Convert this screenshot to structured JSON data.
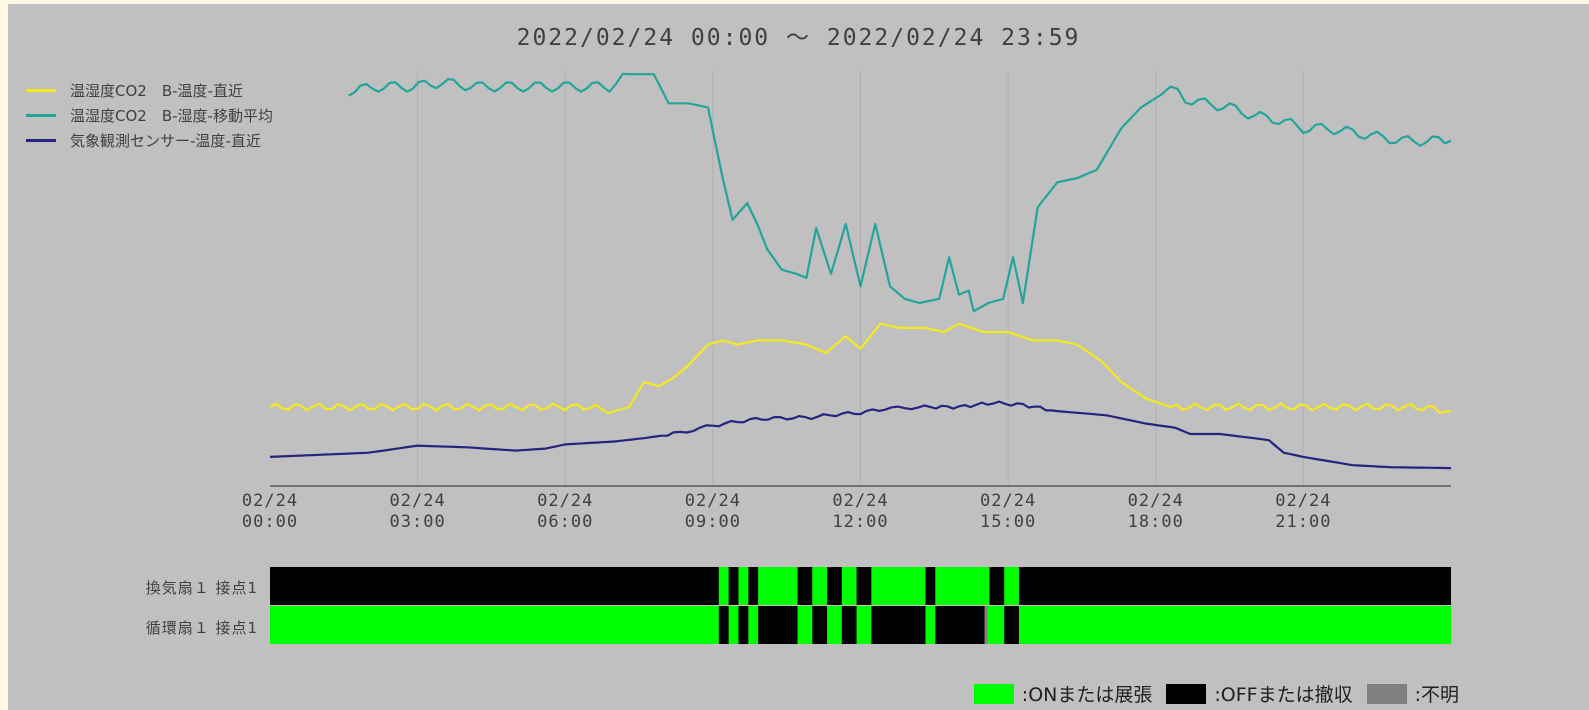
{
  "colors": {
    "background": "#c0c0c0",
    "axis": "#5a5a5a",
    "grid": "#b0b0b0",
    "on": "#00ff00",
    "off": "#000000",
    "unknown": "#808080"
  },
  "chart_data": {
    "type": "line",
    "title": "2022/02/24 00:00 ～ 2022/02/24 23:59",
    "x_range_hours": [
      0,
      24
    ],
    "y_range_relative": [
      0,
      1
    ],
    "x_ticks": [
      {
        "hour": 0,
        "date": "02/24",
        "time": "00:00"
      },
      {
        "hour": 3,
        "date": "02/24",
        "time": "03:00"
      },
      {
        "hour": 6,
        "date": "02/24",
        "time": "06:00"
      },
      {
        "hour": 9,
        "date": "02/24",
        "time": "09:00"
      },
      {
        "hour": 12,
        "date": "02/24",
        "time": "12:00"
      },
      {
        "hour": 15,
        "date": "02/24",
        "time": "15:00"
      },
      {
        "hour": 18,
        "date": "02/24",
        "time": "18:00"
      },
      {
        "hour": 21,
        "date": "02/24",
        "time": "21:00"
      }
    ],
    "grid": true,
    "legend_position": "top-left",
    "series": [
      {
        "name": "温湿度CO2　B-温度-直近",
        "color": "#f5ea1e",
        "points": [
          [
            0,
            0.19
          ],
          [
            0.5,
            0.19
          ],
          [
            1,
            0.19
          ],
          [
            1.5,
            0.19
          ],
          [
            2,
            0.19
          ],
          [
            2.5,
            0.19
          ],
          [
            3,
            0.19
          ],
          [
            3.5,
            0.19
          ],
          [
            4,
            0.19
          ],
          [
            4.5,
            0.19
          ],
          [
            5,
            0.19
          ],
          [
            5.5,
            0.19
          ],
          [
            6,
            0.19
          ],
          [
            6.5,
            0.19
          ],
          [
            7,
            0.18
          ],
          [
            7.3,
            0.19
          ],
          [
            7.6,
            0.25
          ],
          [
            7.9,
            0.24
          ],
          [
            8.2,
            0.26
          ],
          [
            8.5,
            0.29
          ],
          [
            8.9,
            0.34
          ],
          [
            9.2,
            0.35
          ],
          [
            9.5,
            0.34
          ],
          [
            9.9,
            0.35
          ],
          [
            10.4,
            0.35
          ],
          [
            10.9,
            0.34
          ],
          [
            11.3,
            0.32
          ],
          [
            11.7,
            0.36
          ],
          [
            12,
            0.33
          ],
          [
            12.4,
            0.39
          ],
          [
            12.8,
            0.38
          ],
          [
            13.3,
            0.38
          ],
          [
            13.7,
            0.37
          ],
          [
            14,
            0.39
          ],
          [
            14.5,
            0.37
          ],
          [
            15,
            0.37
          ],
          [
            15.5,
            0.35
          ],
          [
            16,
            0.35
          ],
          [
            16.4,
            0.34
          ],
          [
            16.9,
            0.3
          ],
          [
            17.3,
            0.25
          ],
          [
            17.8,
            0.21
          ],
          [
            18.3,
            0.19
          ],
          [
            18.8,
            0.19
          ],
          [
            19.3,
            0.19
          ],
          [
            19.8,
            0.19
          ],
          [
            20.3,
            0.19
          ],
          [
            20.8,
            0.19
          ],
          [
            21.3,
            0.19
          ],
          [
            21.8,
            0.19
          ],
          [
            22.3,
            0.19
          ],
          [
            22.8,
            0.19
          ],
          [
            23.3,
            0.19
          ],
          [
            24,
            0.18
          ]
        ]
      },
      {
        "name": "温湿度CO2　B-湿度-移動平均",
        "color": "#23a59a",
        "points": [
          [
            1.6,
            0.95
          ],
          [
            2.2,
            0.96
          ],
          [
            2.9,
            0.96
          ],
          [
            3.5,
            0.97
          ],
          [
            4.2,
            0.96
          ],
          [
            4.8,
            0.96
          ],
          [
            5.5,
            0.96
          ],
          [
            6.2,
            0.96
          ],
          [
            6.9,
            0.96
          ],
          [
            7.3,
            0.99
          ],
          [
            7.8,
            0.99
          ],
          [
            8.1,
            0.92
          ],
          [
            8.5,
            0.92
          ],
          [
            8.9,
            0.91
          ],
          [
            9.2,
            0.74
          ],
          [
            9.4,
            0.64
          ],
          [
            9.7,
            0.68
          ],
          [
            9.9,
            0.63
          ],
          [
            10.1,
            0.57
          ],
          [
            10.4,
            0.52
          ],
          [
            10.7,
            0.51
          ],
          [
            10.9,
            0.5
          ],
          [
            11.1,
            0.62
          ],
          [
            11.4,
            0.51
          ],
          [
            11.7,
            0.63
          ],
          [
            12.0,
            0.48
          ],
          [
            12.3,
            0.63
          ],
          [
            12.6,
            0.48
          ],
          [
            12.9,
            0.45
          ],
          [
            13.2,
            0.44
          ],
          [
            13.6,
            0.45
          ],
          [
            13.8,
            0.55
          ],
          [
            14.0,
            0.46
          ],
          [
            14.2,
            0.47
          ],
          [
            14.3,
            0.42
          ],
          [
            14.6,
            0.44
          ],
          [
            14.9,
            0.45
          ],
          [
            15.1,
            0.55
          ],
          [
            15.3,
            0.44
          ],
          [
            15.6,
            0.67
          ],
          [
            16.0,
            0.73
          ],
          [
            16.4,
            0.74
          ],
          [
            16.8,
            0.76
          ],
          [
            17.3,
            0.86
          ],
          [
            17.7,
            0.91
          ],
          [
            18.1,
            0.94
          ],
          [
            18.3,
            0.96
          ],
          [
            18.6,
            0.93
          ],
          [
            19.0,
            0.92
          ],
          [
            19.5,
            0.91
          ],
          [
            20.0,
            0.89
          ],
          [
            20.5,
            0.88
          ],
          [
            21.0,
            0.86
          ],
          [
            21.5,
            0.86
          ],
          [
            22.0,
            0.85
          ],
          [
            22.5,
            0.84
          ],
          [
            23.0,
            0.83
          ],
          [
            23.5,
            0.83
          ],
          [
            24.0,
            0.83
          ]
        ]
      },
      {
        "name": "気象観測センサー-温度-直近",
        "color": "#26247e",
        "points": [
          [
            0,
            0.07
          ],
          [
            1,
            0.075
          ],
          [
            2,
            0.08
          ],
          [
            3,
            0.097
          ],
          [
            4,
            0.093
          ],
          [
            5,
            0.085
          ],
          [
            5.6,
            0.09
          ],
          [
            6,
            0.1
          ],
          [
            7,
            0.107
          ],
          [
            7.6,
            0.115
          ],
          [
            8.2,
            0.125
          ],
          [
            9,
            0.145
          ],
          [
            9.5,
            0.155
          ],
          [
            10,
            0.162
          ],
          [
            11,
            0.165
          ],
          [
            11.5,
            0.172
          ],
          [
            12,
            0.176
          ],
          [
            12.5,
            0.186
          ],
          [
            13.3,
            0.19
          ],
          [
            14,
            0.19
          ],
          [
            14.7,
            0.2
          ],
          [
            15.3,
            0.195
          ],
          [
            16,
            0.18
          ],
          [
            17,
            0.17
          ],
          [
            17.8,
            0.15
          ],
          [
            18.4,
            0.14
          ],
          [
            18.7,
            0.125
          ],
          [
            19.3,
            0.125
          ],
          [
            20,
            0.115
          ],
          [
            20.3,
            0.11
          ],
          [
            20.6,
            0.08
          ],
          [
            21,
            0.07
          ],
          [
            21.5,
            0.06
          ],
          [
            22,
            0.05
          ],
          [
            22.8,
            0.045
          ],
          [
            23.5,
            0.044
          ],
          [
            24,
            0.043
          ]
        ]
      }
    ]
  },
  "devices": [
    {
      "label": "換気扇１ 接点1",
      "default_state": "off",
      "intervals": [
        {
          "from": 9.12,
          "to": 9.32,
          "state": "on"
        },
        {
          "from": 9.52,
          "to": 9.72,
          "state": "on"
        },
        {
          "from": 9.92,
          "to": 10.72,
          "state": "on"
        },
        {
          "from": 11.02,
          "to": 11.32,
          "state": "on"
        },
        {
          "from": 11.62,
          "to": 11.92,
          "state": "on"
        },
        {
          "from": 12.22,
          "to": 13.32,
          "state": "on"
        },
        {
          "from": 13.52,
          "to": 14.62,
          "state": "on"
        },
        {
          "from": 14.92,
          "to": 15.22,
          "state": "on"
        }
      ]
    },
    {
      "label": "循環扇１ 接点1",
      "default_state": "on",
      "intervals": [
        {
          "from": 9.12,
          "to": 9.32,
          "state": "off"
        },
        {
          "from": 9.52,
          "to": 9.72,
          "state": "off"
        },
        {
          "from": 9.92,
          "to": 10.72,
          "state": "off"
        },
        {
          "from": 11.02,
          "to": 11.32,
          "state": "off"
        },
        {
          "from": 11.62,
          "to": 11.92,
          "state": "off"
        },
        {
          "from": 12.22,
          "to": 13.32,
          "state": "off"
        },
        {
          "from": 13.52,
          "to": 14.52,
          "state": "off"
        },
        {
          "from": 14.52,
          "to": 14.58,
          "state": "unknown"
        },
        {
          "from": 14.92,
          "to": 15.22,
          "state": "off"
        }
      ]
    }
  ],
  "status_legend": {
    "on_label": ":ONまたは展張",
    "off_label": ":OFFまたは撤収",
    "unknown_label": ":不明"
  }
}
